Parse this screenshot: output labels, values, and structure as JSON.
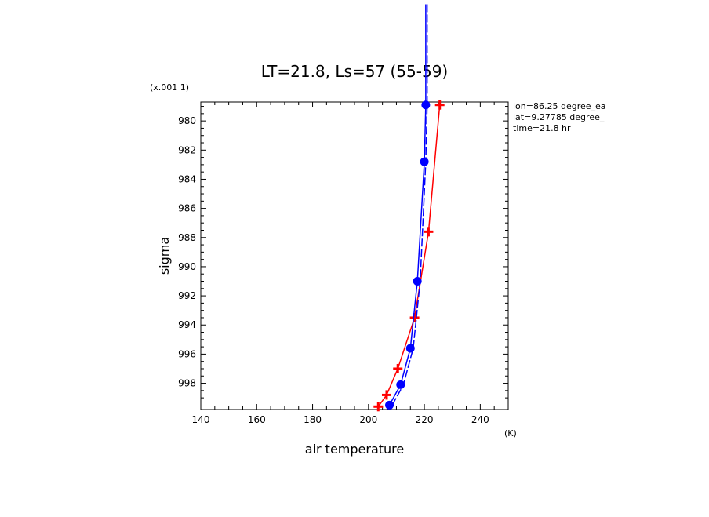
{
  "chart_data": {
    "type": "line",
    "title": "LT=21.8, Ls=57 (55-59)",
    "xlabel": "air temperature",
    "xunit": "(K)",
    "ylabel": "sigma",
    "yscale_note": "(x.001 1)",
    "xlim": [
      140,
      250
    ],
    "ylim": [
      999.8,
      978.7
    ],
    "y_inverted": true,
    "x_ticks": [
      140,
      160,
      180,
      200,
      220,
      240
    ],
    "y_ticks": [
      980,
      982,
      984,
      986,
      988,
      990,
      992,
      994,
      996,
      998
    ],
    "info": [
      "lon=86.25 degree_ea",
      "lat=9.27785 degree_",
      "time=21.8 hr"
    ],
    "series": [
      {
        "color": "#ff0000",
        "marker": "plus",
        "x": [
          203.5,
          206.5,
          210.5,
          216.5,
          221.5,
          225.5
        ],
        "y": [
          999.6,
          998.8,
          997.0,
          993.5,
          987.6,
          978.9
        ]
      },
      {
        "color": "#0000ff",
        "marker": "circle",
        "x": [
          207.5,
          211.5,
          215.0,
          217.5,
          220.0,
          220.5,
          220.5
        ],
        "y": [
          999.5,
          998.1,
          995.6,
          991.0,
          982.8,
          978.9,
          972.0
        ]
      },
      {
        "color": "#0000ff",
        "marker": "none",
        "dashed": true,
        "x": [
          208.5,
          212.5,
          216.0,
          218.5,
          220.5,
          221.0,
          221.0
        ],
        "y": [
          999.5,
          998.1,
          995.6,
          991.0,
          982.8,
          978.9,
          972.0
        ]
      }
    ]
  }
}
